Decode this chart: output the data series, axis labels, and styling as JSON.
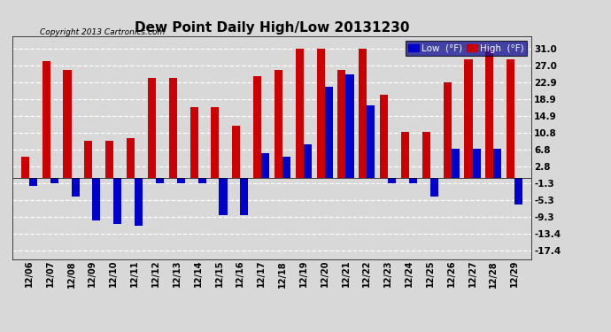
{
  "title": "Dew Point Daily High/Low 20131230",
  "copyright": "Copyright 2013 Cartronics.com",
  "dates": [
    "12/06",
    "12/07",
    "12/08",
    "12/09",
    "12/10",
    "12/11",
    "12/12",
    "12/13",
    "12/14",
    "12/15",
    "12/16",
    "12/17",
    "12/18",
    "12/19",
    "12/20",
    "12/21",
    "12/22",
    "12/23",
    "12/24",
    "12/25",
    "12/26",
    "12/27",
    "12/28",
    "12/29"
  ],
  "high": [
    5.0,
    28.0,
    26.0,
    9.0,
    9.0,
    9.5,
    24.0,
    24.0,
    17.0,
    17.0,
    12.5,
    24.5,
    26.0,
    31.0,
    31.0,
    26.0,
    31.0,
    20.0,
    11.0,
    11.0,
    22.9,
    28.5,
    31.0,
    28.5
  ],
  "low": [
    -2.0,
    -1.3,
    -4.5,
    -10.3,
    -11.0,
    -11.5,
    -1.3,
    -1.3,
    -1.3,
    -9.0,
    -9.0,
    6.0,
    5.0,
    8.0,
    22.0,
    25.0,
    17.5,
    -1.3,
    -1.3,
    -4.5,
    7.0,
    7.0,
    7.0,
    -6.5
  ],
  "high_color": "#cc0000",
  "low_color": "#0000cc",
  "yticks": [
    31.0,
    27.0,
    22.9,
    18.9,
    14.9,
    10.8,
    6.8,
    2.8,
    -1.3,
    -5.3,
    -9.3,
    -13.4,
    -17.4
  ],
  "ylim": [
    -19.5,
    34.0
  ],
  "bg_color": "#d8d8d8",
  "plot_bg": "#d8d8d8",
  "bar_width": 0.38
}
